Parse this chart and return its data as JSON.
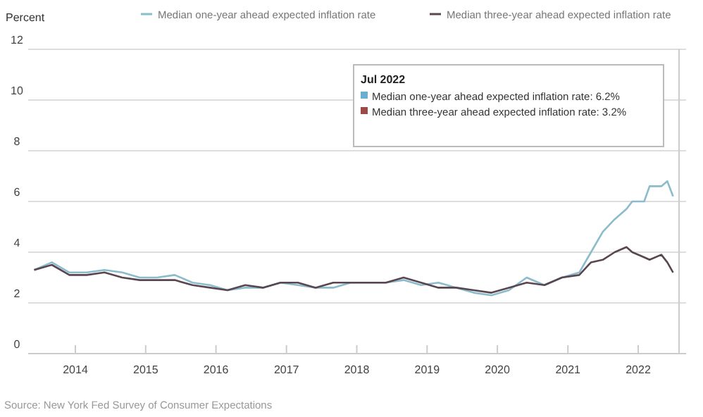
{
  "chart_data": {
    "type": "line",
    "ylabel": "Percent",
    "x": [
      "2013-06",
      "2013-09",
      "2013-12",
      "2014-03",
      "2014-06",
      "2014-09",
      "2014-12",
      "2015-03",
      "2015-06",
      "2015-09",
      "2015-12",
      "2016-03",
      "2016-06",
      "2016-09",
      "2016-12",
      "2017-03",
      "2017-06",
      "2017-09",
      "2017-12",
      "2018-03",
      "2018-06",
      "2018-09",
      "2018-12",
      "2019-03",
      "2019-06",
      "2019-09",
      "2019-12",
      "2020-03",
      "2020-06",
      "2020-09",
      "2020-12",
      "2021-03",
      "2021-05",
      "2021-07",
      "2021-09",
      "2021-11",
      "2021-12",
      "2022-02",
      "2022-03",
      "2022-05",
      "2022-06",
      "2022-07"
    ],
    "series": [
      {
        "name": "Median one-year ahead expected inflation rate",
        "color": "#8bbccc",
        "values": [
          3.3,
          3.6,
          3.2,
          3.2,
          3.3,
          3.2,
          3.0,
          3.0,
          3.1,
          2.8,
          2.7,
          2.5,
          2.6,
          2.6,
          2.8,
          2.7,
          2.6,
          2.6,
          2.8,
          2.8,
          2.8,
          2.9,
          2.7,
          2.8,
          2.6,
          2.4,
          2.3,
          2.5,
          3.0,
          2.7,
          3.0,
          3.2,
          4.0,
          4.8,
          5.3,
          5.7,
          6.0,
          6.0,
          6.6,
          6.6,
          6.8,
          6.2
        ]
      },
      {
        "name": "Median three-year ahead expected inflation rate",
        "color": "#5a4650",
        "values": [
          3.3,
          3.5,
          3.1,
          3.1,
          3.2,
          3.0,
          2.9,
          2.9,
          2.9,
          2.7,
          2.6,
          2.5,
          2.7,
          2.6,
          2.8,
          2.8,
          2.6,
          2.8,
          2.8,
          2.8,
          2.8,
          3.0,
          2.8,
          2.6,
          2.6,
          2.5,
          2.4,
          2.6,
          2.8,
          2.7,
          3.0,
          3.1,
          3.6,
          3.7,
          4.0,
          4.2,
          4.0,
          3.8,
          3.7,
          3.9,
          3.6,
          3.2
        ]
      }
    ],
    "xlim": [
      "2013-05",
      "2022-08"
    ],
    "xticks": [
      "2014",
      "2015",
      "2016",
      "2017",
      "2018",
      "2019",
      "2020",
      "2021",
      "2022"
    ],
    "ylim": [
      0,
      12
    ],
    "yticks": [
      0,
      2,
      4,
      6,
      8,
      10,
      12
    ],
    "grid": "y",
    "legend": "top",
    "line_style": "solid",
    "marker": "none",
    "annotations": [
      "Jul 2022",
      "Median one-year ahead expected inflation rate: 6.2%",
      "Median three-year ahead expected inflation rate: 3.2%",
      "Source: New York Fed Survey of Consumer Expectations"
    ]
  }
}
